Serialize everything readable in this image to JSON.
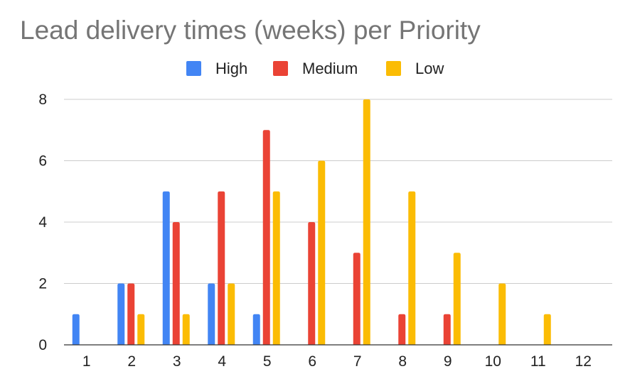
{
  "chart_data": {
    "type": "bar",
    "title": "Lead delivery times (weeks) per Priority",
    "xlabel": "",
    "ylabel": "",
    "categories": [
      "1",
      "2",
      "3",
      "4",
      "5",
      "6",
      "7",
      "8",
      "9",
      "10",
      "11",
      "12"
    ],
    "series": [
      {
        "name": "High",
        "color": "#4285f4",
        "values": [
          1,
          2,
          5,
          2,
          1,
          0,
          0,
          0,
          0,
          0,
          0,
          0
        ]
      },
      {
        "name": "Medium",
        "color": "#ea4335",
        "values": [
          0,
          2,
          4,
          5,
          7,
          4,
          3,
          1,
          1,
          0,
          0,
          0
        ]
      },
      {
        "name": "Low",
        "color": "#fbbc04",
        "values": [
          0,
          1,
          1,
          2,
          5,
          6,
          8,
          5,
          3,
          2,
          1,
          0
        ]
      }
    ],
    "ylim": [
      0,
      8
    ],
    "yticks": [
      0,
      2,
      4,
      6,
      8
    ],
    "grid": true,
    "legend_position": "top"
  }
}
